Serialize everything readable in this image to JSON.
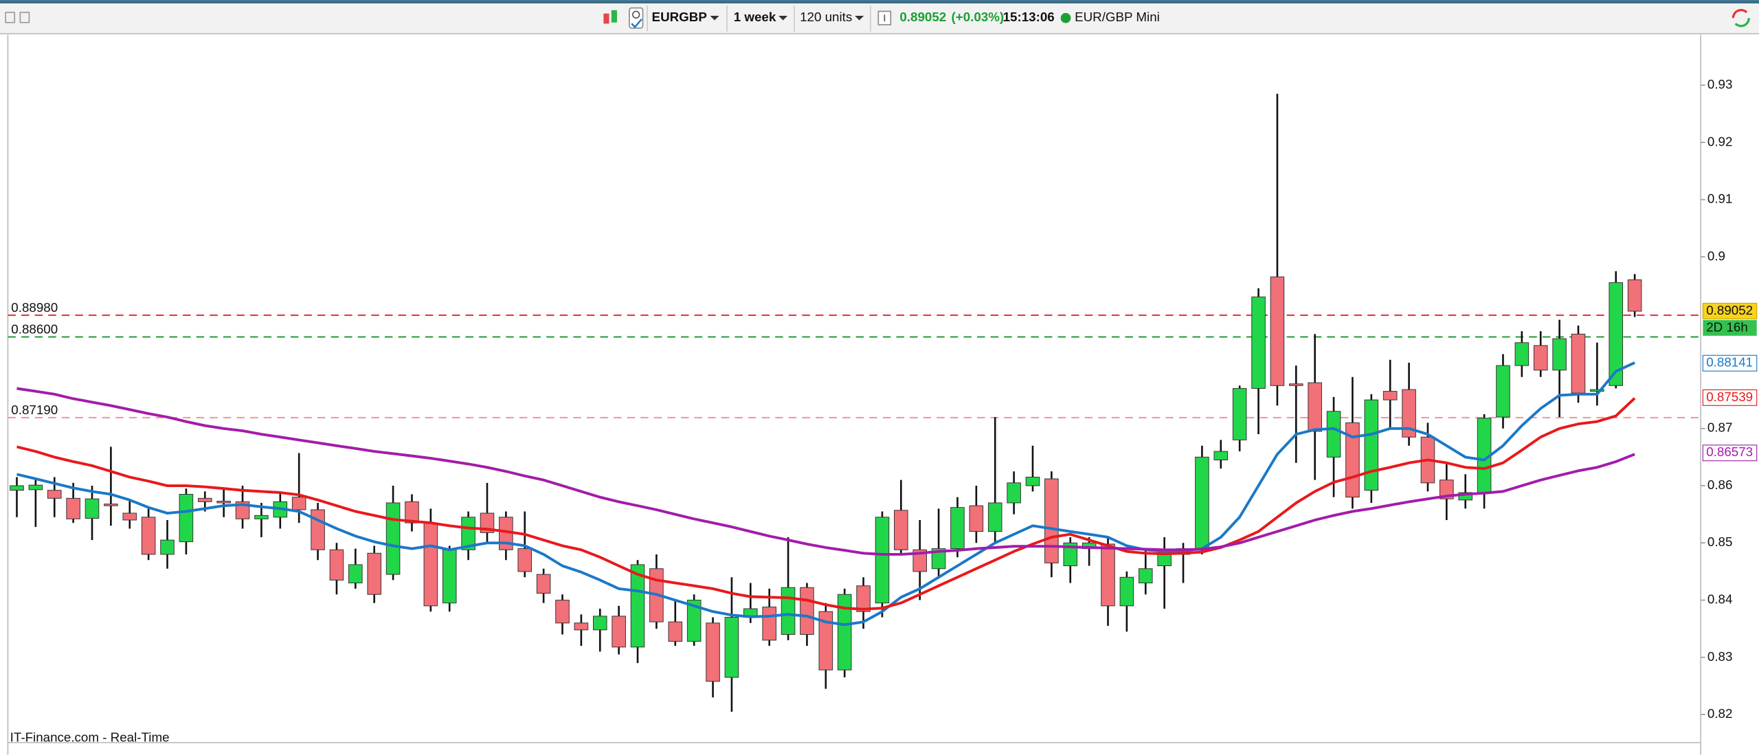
{
  "toolbar": {
    "symbol": "EURGBP",
    "period": "1 week",
    "units": "120 units",
    "last": "0.89052",
    "change": "(+0.03%)",
    "time": "15:13:06",
    "instrument": "EUR/GBP Mini"
  },
  "footer": "IT-Finance.com - Real-Time",
  "chart_data": {
    "type": "candlestick",
    "ylim": [
      0.8151,
      0.939
    ],
    "yticks": [
      0.82,
      0.83,
      0.84,
      0.85,
      0.86,
      0.87,
      0.9,
      0.91,
      0.92,
      0.93
    ],
    "up_color": "#22d64a",
    "down_color": "#f27078",
    "open": [
      0.8592,
      0.8593,
      0.8592,
      0.8578,
      0.8543,
      0.8568,
      0.8552,
      0.8545,
      0.848,
      0.8502,
      0.8578,
      0.8573,
      0.8572,
      0.8542,
      0.8545,
      0.858,
      0.8558,
      0.8488,
      0.843,
      0.8482,
      0.8445,
      0.8572,
      0.8535,
      0.8395,
      0.8488,
      0.8552,
      0.8545,
      0.849,
      0.8445,
      0.84,
      0.836,
      0.8348,
      0.8372,
      0.8318,
      0.8455,
      0.8362,
      0.8328,
      0.836,
      0.8265,
      0.837,
      0.8388,
      0.834,
      0.8422,
      0.838,
      0.8278,
      0.8425,
      0.8395,
      0.8557,
      0.8488,
      0.8455,
      0.849,
      0.8565,
      0.852,
      0.857,
      0.86,
      0.8612,
      0.846,
      0.849,
      0.8498,
      0.839,
      0.843,
      0.846,
      0.848,
      0.8488,
      0.8645,
      0.868,
      0.877,
      0.8965,
      0.8778,
      0.878,
      0.865,
      0.871,
      0.8592,
      0.8765,
      0.8768,
      0.8685,
      0.861,
      0.8575,
      0.8588,
      0.872,
      0.881,
      0.8845,
      0.8802,
      0.8865,
      0.8765,
      0.8775,
      0.896
    ],
    "high": [
      0.8615,
      0.8612,
      0.8615,
      0.8605,
      0.86,
      0.8668,
      0.8575,
      0.856,
      0.854,
      0.8595,
      0.859,
      0.8595,
      0.86,
      0.857,
      0.859,
      0.8657,
      0.857,
      0.85,
      0.849,
      0.8495,
      0.86,
      0.8585,
      0.856,
      0.8495,
      0.8555,
      0.8605,
      0.8555,
      0.8555,
      0.8455,
      0.841,
      0.8375,
      0.8385,
      0.839,
      0.847,
      0.848,
      0.84,
      0.841,
      0.837,
      0.844,
      0.843,
      0.842,
      0.851,
      0.843,
      0.8395,
      0.842,
      0.844,
      0.8555,
      0.861,
      0.854,
      0.856,
      0.858,
      0.86,
      0.872,
      0.8625,
      0.867,
      0.8625,
      0.851,
      0.851,
      0.851,
      0.845,
      0.849,
      0.851,
      0.85,
      0.867,
      0.868,
      0.8775,
      0.8945,
      0.9285,
      0.881,
      0.8865,
      0.8755,
      0.879,
      0.876,
      0.882,
      0.8815,
      0.871,
      0.864,
      0.862,
      0.8725,
      0.883,
      0.887,
      0.887,
      0.889,
      0.888,
      0.885,
      0.8975,
      0.897
    ],
    "low": [
      0.8545,
      0.8528,
      0.8545,
      0.8535,
      0.8505,
      0.853,
      0.8525,
      0.847,
      0.8455,
      0.848,
      0.8555,
      0.8545,
      0.8525,
      0.851,
      0.8525,
      0.8535,
      0.847,
      0.841,
      0.842,
      0.8395,
      0.8435,
      0.852,
      0.838,
      0.838,
      0.847,
      0.85,
      0.847,
      0.844,
      0.8395,
      0.834,
      0.832,
      0.831,
      0.8305,
      0.829,
      0.835,
      0.832,
      0.832,
      0.823,
      0.8205,
      0.836,
      0.832,
      0.833,
      0.832,
      0.8245,
      0.8265,
      0.835,
      0.837,
      0.848,
      0.84,
      0.844,
      0.8475,
      0.85,
      0.85,
      0.855,
      0.859,
      0.844,
      0.843,
      0.846,
      0.8355,
      0.8345,
      0.841,
      0.8385,
      0.843,
      0.848,
      0.863,
      0.866,
      0.869,
      0.874,
      0.864,
      0.861,
      0.858,
      0.856,
      0.857,
      0.87,
      0.867,
      0.859,
      0.854,
      0.856,
      0.856,
      0.87,
      0.879,
      0.879,
      0.872,
      0.8745,
      0.874,
      0.877,
      0.8895
    ],
    "close": [
      0.86,
      0.8601,
      0.8578,
      0.8542,
      0.8577,
      0.8565,
      0.854,
      0.848,
      0.8505,
      0.8585,
      0.8572,
      0.857,
      0.8542,
      0.8548,
      0.8572,
      0.8558,
      0.8488,
      0.8435,
      0.8462,
      0.841,
      0.857,
      0.8535,
      0.839,
      0.8488,
      0.8545,
      0.8518,
      0.8488,
      0.845,
      0.8412,
      0.836,
      0.8348,
      0.8372,
      0.8318,
      0.8462,
      0.8362,
      0.8328,
      0.84,
      0.8258,
      0.837,
      0.8385,
      0.833,
      0.8422,
      0.834,
      0.8278,
      0.841,
      0.838,
      0.8545,
      0.8488,
      0.845,
      0.849,
      0.8562,
      0.852,
      0.857,
      0.8605,
      0.8615,
      0.8465,
      0.85,
      0.85,
      0.839,
      0.844,
      0.8455,
      0.8485,
      0.849,
      0.865,
      0.866,
      0.877,
      0.893,
      0.8775,
      0.8775,
      0.8695,
      0.873,
      0.858,
      0.875,
      0.875,
      0.8685,
      0.8605,
      0.8577,
      0.8588,
      0.8718,
      0.881,
      0.885,
      0.8802,
      0.8857,
      0.8762,
      0.8768,
      0.8955,
      0.8905
    ],
    "current_price": 0.89052,
    "countdown": "2D 16h",
    "levels": [
      {
        "value": 0.8898,
        "label": "0.88980",
        "color": "#e8333a"
      },
      {
        "value": 0.886,
        "label": "0.88600",
        "color": "#2e9e3e"
      },
      {
        "value": 0.8719,
        "label": "0.87190",
        "color": "#f29aa0"
      }
    ],
    "series": [
      {
        "color": "#1b78c8",
        "last": 0.88141,
        "values": [
          0.862,
          0.8612,
          0.8604,
          0.8596,
          0.859,
          0.8585,
          0.8575,
          0.8562,
          0.8552,
          0.8555,
          0.856,
          0.8565,
          0.8567,
          0.8563,
          0.856,
          0.8555,
          0.854,
          0.8525,
          0.8512,
          0.8502,
          0.8495,
          0.849,
          0.8495,
          0.8488,
          0.8494,
          0.85,
          0.85,
          0.8495,
          0.848,
          0.846,
          0.8449,
          0.8435,
          0.842,
          0.8416,
          0.841,
          0.84,
          0.839,
          0.838,
          0.8374,
          0.8371,
          0.8372,
          0.8375,
          0.8372,
          0.8362,
          0.8357,
          0.8362,
          0.838,
          0.8405,
          0.842,
          0.844,
          0.846,
          0.848,
          0.85,
          0.8515,
          0.853,
          0.8525,
          0.852,
          0.8515,
          0.851,
          0.8495,
          0.8488,
          0.8485,
          0.8486,
          0.849,
          0.851,
          0.8545,
          0.86,
          0.8655,
          0.869,
          0.8698,
          0.87,
          0.8685,
          0.869,
          0.87,
          0.87,
          0.869,
          0.867,
          0.865,
          0.8645,
          0.867,
          0.8705,
          0.8735,
          0.8758,
          0.876,
          0.876,
          0.88,
          0.8815
        ]
      },
      {
        "color": "#e8191b",
        "last": 0.87539,
        "values": [
          0.8668,
          0.866,
          0.865,
          0.8642,
          0.8635,
          0.8625,
          0.8615,
          0.8608,
          0.86,
          0.86,
          0.8598,
          0.8595,
          0.8592,
          0.859,
          0.8588,
          0.8584,
          0.8575,
          0.8565,
          0.8555,
          0.8548,
          0.8541,
          0.8538,
          0.8535,
          0.853,
          0.8526,
          0.8524,
          0.852,
          0.8515,
          0.8505,
          0.8495,
          0.8488,
          0.8475,
          0.846,
          0.8445,
          0.8435,
          0.843,
          0.8425,
          0.842,
          0.8412,
          0.8406,
          0.8405,
          0.8404,
          0.84,
          0.8392,
          0.8386,
          0.8384,
          0.8386,
          0.8395,
          0.841,
          0.8425,
          0.844,
          0.8455,
          0.847,
          0.8485,
          0.8498,
          0.851,
          0.8515,
          0.8505,
          0.8495,
          0.8485,
          0.8482,
          0.8481,
          0.8482,
          0.8484,
          0.8492,
          0.8505,
          0.852,
          0.8545,
          0.857,
          0.859,
          0.8606,
          0.8615,
          0.8625,
          0.8632,
          0.864,
          0.8645,
          0.864,
          0.8632,
          0.863,
          0.864,
          0.8662,
          0.8685,
          0.87,
          0.8708,
          0.8712,
          0.8722,
          0.8753
        ]
      },
      {
        "color": "#a21caa",
        "last": 0.86573,
        "values": [
          0.877,
          0.8765,
          0.876,
          0.8752,
          0.8746,
          0.874,
          0.8733,
          0.8726,
          0.872,
          0.8712,
          0.8705,
          0.87,
          0.8696,
          0.869,
          0.8685,
          0.868,
          0.8675,
          0.867,
          0.8665,
          0.866,
          0.8656,
          0.8652,
          0.8648,
          0.8643,
          0.8638,
          0.8632,
          0.8625,
          0.8617,
          0.861,
          0.86,
          0.859,
          0.858,
          0.8572,
          0.8565,
          0.8558,
          0.855,
          0.8542,
          0.8535,
          0.8528,
          0.852,
          0.8512,
          0.8505,
          0.8498,
          0.8492,
          0.8487,
          0.8482,
          0.848,
          0.848,
          0.8482,
          0.8485,
          0.8487,
          0.849,
          0.8492,
          0.8494,
          0.8494,
          0.8494,
          0.8493,
          0.8492,
          0.8491,
          0.849,
          0.8489,
          0.8488,
          0.8488,
          0.8489,
          0.8493,
          0.85,
          0.851,
          0.852,
          0.853,
          0.854,
          0.8548,
          0.8555,
          0.856,
          0.8566,
          0.8572,
          0.8577,
          0.8582,
          0.8585,
          0.8587,
          0.859,
          0.86,
          0.861,
          0.8618,
          0.8626,
          0.8632,
          0.8642,
          0.8655
        ]
      }
    ]
  }
}
